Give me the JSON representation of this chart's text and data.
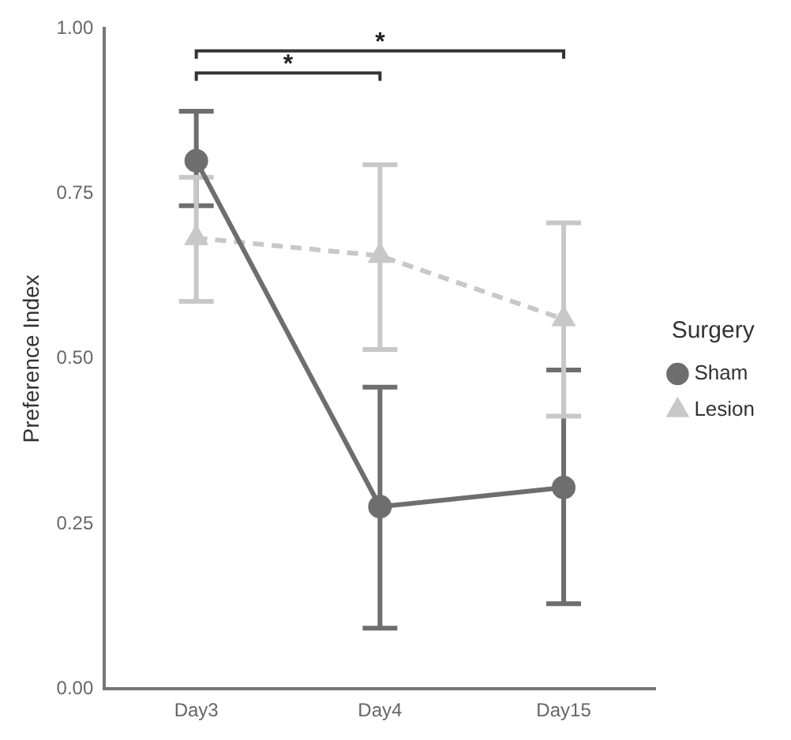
{
  "chart_data": {
    "type": "line",
    "ylabel": "Preference Index",
    "legend_title": "Surgery",
    "legend": "right",
    "grid": false,
    "categories": [
      "Day3",
      "Day4",
      "Day15"
    ],
    "ylim": [
      0,
      1
    ],
    "yticks": [
      {
        "value": 0,
        "label": "0.00"
      },
      {
        "value": 0.25,
        "label": "0.25"
      },
      {
        "value": 0.5,
        "label": "0.50"
      },
      {
        "value": 0.75,
        "label": "0.75"
      },
      {
        "value": 1,
        "label": "1.00"
      }
    ],
    "series": [
      {
        "name": "Sham",
        "color": "#6e6e6e",
        "marker": "circle",
        "line_style": "solid",
        "values": [
          0.8,
          0.276,
          0.305
        ],
        "errors": [
          [
            0.732,
            0.875
          ],
          [
            0.092,
            0.457
          ],
          [
            0.129,
            0.483
          ]
        ]
      },
      {
        "name": "Lesion",
        "color": "#c8c8c8",
        "marker": "triangle",
        "line_style": "dashed",
        "values": [
          0.683,
          0.656,
          0.56
        ],
        "errors": [
          [
            0.587,
            0.775
          ],
          [
            0.514,
            0.794
          ],
          [
            0.413,
            0.706
          ]
        ]
      }
    ],
    "annotations": [
      "*",
      "*"
    ]
  }
}
